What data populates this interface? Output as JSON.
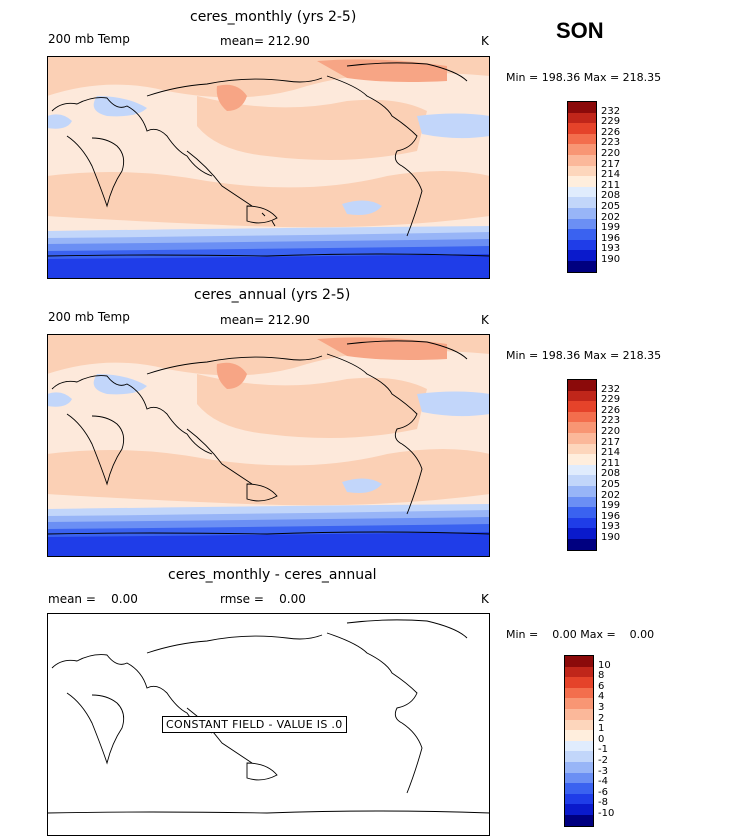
{
  "season": "SON",
  "colors": {
    "temp_scale": [
      "#000080",
      "#0a1acc",
      "#1f3de8",
      "#3a62f0",
      "#6b8ff4",
      "#98b5f7",
      "#c2d6fa",
      "#e0ecfd",
      "#ffeedd",
      "#fdd6bc",
      "#fbb89a",
      "#f89674",
      "#f36e4d",
      "#e5432a",
      "#c0261a",
      "#8b0a0a"
    ],
    "diff_scale": [
      "#000080",
      "#0a1acc",
      "#1f3de8",
      "#3a62f0",
      "#6b8ff4",
      "#98b5f7",
      "#c2d6fa",
      "#e0ecfd",
      "#ffeedd",
      "#fdd6bc",
      "#fbb89a",
      "#f89674",
      "#f36e4d",
      "#e5432a",
      "#c0261a",
      "#8b0a0a"
    ]
  },
  "chart_data": [
    {
      "type": "heatmap",
      "title": "ceres_monthly (yrs 2-5)",
      "variable": "200 mb Temp",
      "mean_label": "mean= 212.90",
      "units": "K",
      "minmax_label": "Min = 198.36 Max = 218.35",
      "min": 198.36,
      "max": 218.35,
      "mean": 212.9,
      "levels": [
        "232",
        "229",
        "226",
        "223",
        "220",
        "217",
        "214",
        "211",
        "208",
        "205",
        "202",
        "199",
        "196",
        "193",
        "190"
      ]
    },
    {
      "type": "heatmap",
      "title": "ceres_annual (yrs 2-5)",
      "variable": "200 mb Temp",
      "mean_label": "mean= 212.90",
      "units": "K",
      "minmax_label": "Min = 198.36 Max = 218.35",
      "min": 198.36,
      "max": 218.35,
      "mean": 212.9,
      "levels": [
        "232",
        "229",
        "226",
        "223",
        "220",
        "217",
        "214",
        "211",
        "208",
        "205",
        "202",
        "199",
        "196",
        "193",
        "190"
      ]
    },
    {
      "type": "heatmap",
      "title": "ceres_monthly - ceres_annual",
      "mean_text": "mean =    0.00",
      "rmse_text": "rmse =    0.00",
      "units": "K",
      "minmax_label": "Min =    0.00 Max =    0.00",
      "min": 0.0,
      "max": 0.0,
      "mean": 0.0,
      "rmse": 0.0,
      "constant_label": "CONSTANT FIELD - VALUE IS .0",
      "levels": [
        "10",
        "8",
        "6",
        "4",
        "3",
        "2",
        "1",
        "0",
        "-1",
        "-2",
        "-3",
        "-4",
        "-6",
        "-8",
        "-10"
      ]
    }
  ]
}
